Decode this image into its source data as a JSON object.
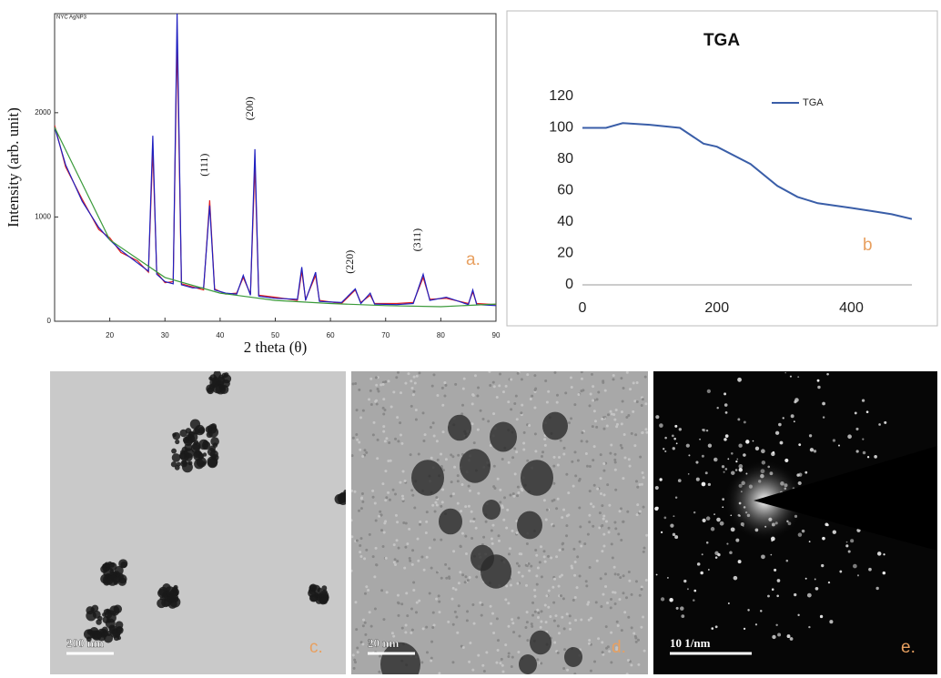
{
  "chart_data": [
    {
      "type": "line",
      "title": "NYC AgNP3",
      "xlabel": "2 theta (θ)",
      "ylabel": "Intensity (arb. unit)",
      "xlim": [
        10,
        90
      ],
      "ylim": [
        0,
        2950
      ],
      "xticks": [
        20,
        30,
        40,
        50,
        60,
        70,
        80,
        90
      ],
      "yticks": [
        0,
        1000,
        2000
      ],
      "annotations": [
        "(111)",
        "(200)",
        "(220)",
        "(311)"
      ],
      "panel": "a.",
      "series": [
        {
          "color": "#e02020",
          "x": [
            10,
            12,
            15,
            18,
            20,
            22,
            25,
            27,
            27.8,
            28.5,
            30,
            31.5,
            32.2,
            33,
            35,
            37,
            38.1,
            39,
            41,
            43,
            44.2,
            45.5,
            46.3,
            47,
            50,
            54,
            54.8,
            55.5,
            57.3,
            58,
            62,
            64.5,
            65.5,
            67.2,
            68,
            72,
            75,
            76.8,
            78,
            81,
            85,
            85.8,
            86.5,
            90
          ],
          "values": [
            1880,
            1480,
            1170,
            880,
            800,
            660,
            580,
            470,
            1650,
            470,
            370,
            380,
            2700,
            360,
            330,
            300,
            1160,
            310,
            260,
            270,
            420,
            260,
            1500,
            250,
            230,
            200,
            480,
            210,
            440,
            200,
            170,
            300,
            180,
            250,
            170,
            170,
            180,
            420,
            210,
            220,
            170,
            280,
            170,
            160
          ]
        },
        {
          "color": "#2020c0",
          "x": [
            10,
            12,
            15,
            18,
            20,
            22,
            25,
            27,
            27.8,
            28.5,
            30,
            31.5,
            32.2,
            33,
            35,
            37,
            38.1,
            39,
            41,
            43,
            44.2,
            45.5,
            46.3,
            47,
            50,
            54,
            54.8,
            55.5,
            57.3,
            58,
            62,
            64.5,
            65.5,
            67.2,
            68,
            72,
            75,
            76.8,
            78,
            81,
            85,
            85.8,
            86.5,
            90
          ],
          "values": [
            1860,
            1500,
            1150,
            900,
            780,
            680,
            560,
            480,
            1780,
            450,
            380,
            360,
            2950,
            350,
            320,
            320,
            1110,
            300,
            270,
            260,
            440,
            250,
            1650,
            240,
            220,
            210,
            520,
            200,
            470,
            190,
            180,
            310,
            170,
            270,
            165,
            160,
            170,
            450,
            200,
            230,
            160,
            300,
            160,
            150
          ]
        },
        {
          "color": "#3a9a3a",
          "x": [
            10,
            20,
            30,
            40,
            50,
            60,
            70,
            80,
            90
          ],
          "values": [
            1860,
            780,
            420,
            270,
            200,
            170,
            150,
            140,
            165
          ]
        }
      ]
    },
    {
      "type": "line",
      "title": "TGA",
      "xlim": [
        0,
        490
      ],
      "ylim": [
        0,
        120
      ],
      "xticks": [
        0,
        200,
        400
      ],
      "yticks": [
        0,
        20,
        40,
        60,
        80,
        100,
        120
      ],
      "panel": "b",
      "series": [
        {
          "name": "TGA",
          "color": "#3a5ea8",
          "x": [
            0,
            35,
            60,
            100,
            145,
            180,
            200,
            250,
            290,
            320,
            350,
            400,
            430,
            460,
            490
          ],
          "values": [
            100,
            100,
            103,
            102,
            100,
            90,
            88,
            77,
            63,
            56,
            52,
            49,
            47,
            45,
            42
          ]
        }
      ]
    }
  ],
  "images": [
    {
      "scale_bar": "200 nm",
      "panel": "c."
    },
    {
      "scale_bar": "20 nm",
      "panel": "d."
    },
    {
      "scale_bar": "10 1/nm",
      "panel": "e."
    }
  ]
}
